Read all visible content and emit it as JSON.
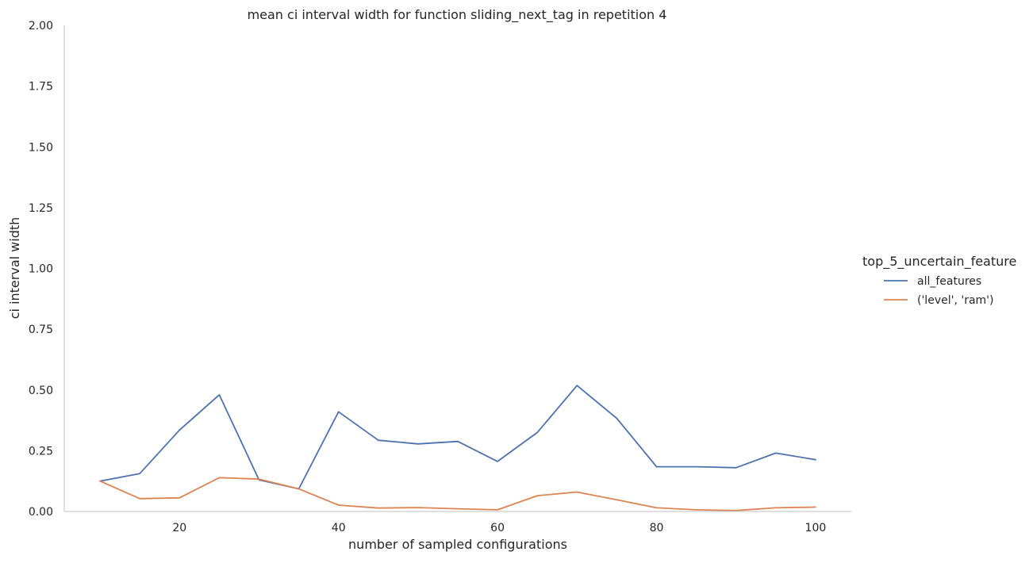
{
  "chart_data": {
    "type": "line",
    "title": "mean ci interval width for function sliding_next_tag in repetition 4",
    "xlabel": "number of sampled configurations",
    "ylabel": "ci interval width",
    "xlim": [
      5.5,
      104.5
    ],
    "ylim": [
      0,
      2
    ],
    "xticks": [
      20,
      40,
      60,
      80,
      100
    ],
    "yticks": [
      "0.00",
      "0.25",
      "0.50",
      "0.75",
      "1.00",
      "1.25",
      "1.50",
      "1.75",
      "2.00"
    ],
    "grid": false,
    "legend": {
      "title": "top_5_uncertain_feature",
      "placement": "right"
    },
    "x": [
      10,
      15,
      20,
      25,
      30,
      35,
      40,
      45,
      50,
      55,
      60,
      65,
      70,
      75,
      80,
      85,
      90,
      95,
      100
    ],
    "series": [
      {
        "name": "all_features",
        "color": "#4c72b0",
        "values": [
          0.125,
          0.156,
          0.335,
          0.48,
          0.13,
          0.093,
          0.41,
          0.293,
          0.278,
          0.288,
          0.206,
          0.325,
          0.518,
          0.383,
          0.184,
          0.184,
          0.18,
          0.24,
          0.213
        ]
      },
      {
        "name": "('level', 'ram')",
        "color": "#dd8452",
        "values": [
          0.125,
          0.053,
          0.056,
          0.139,
          0.133,
          0.093,
          0.026,
          0.014,
          0.016,
          0.011,
          0.007,
          0.065,
          0.08,
          0.048,
          0.015,
          0.007,
          0.004,
          0.015,
          0.018
        ]
      }
    ]
  }
}
